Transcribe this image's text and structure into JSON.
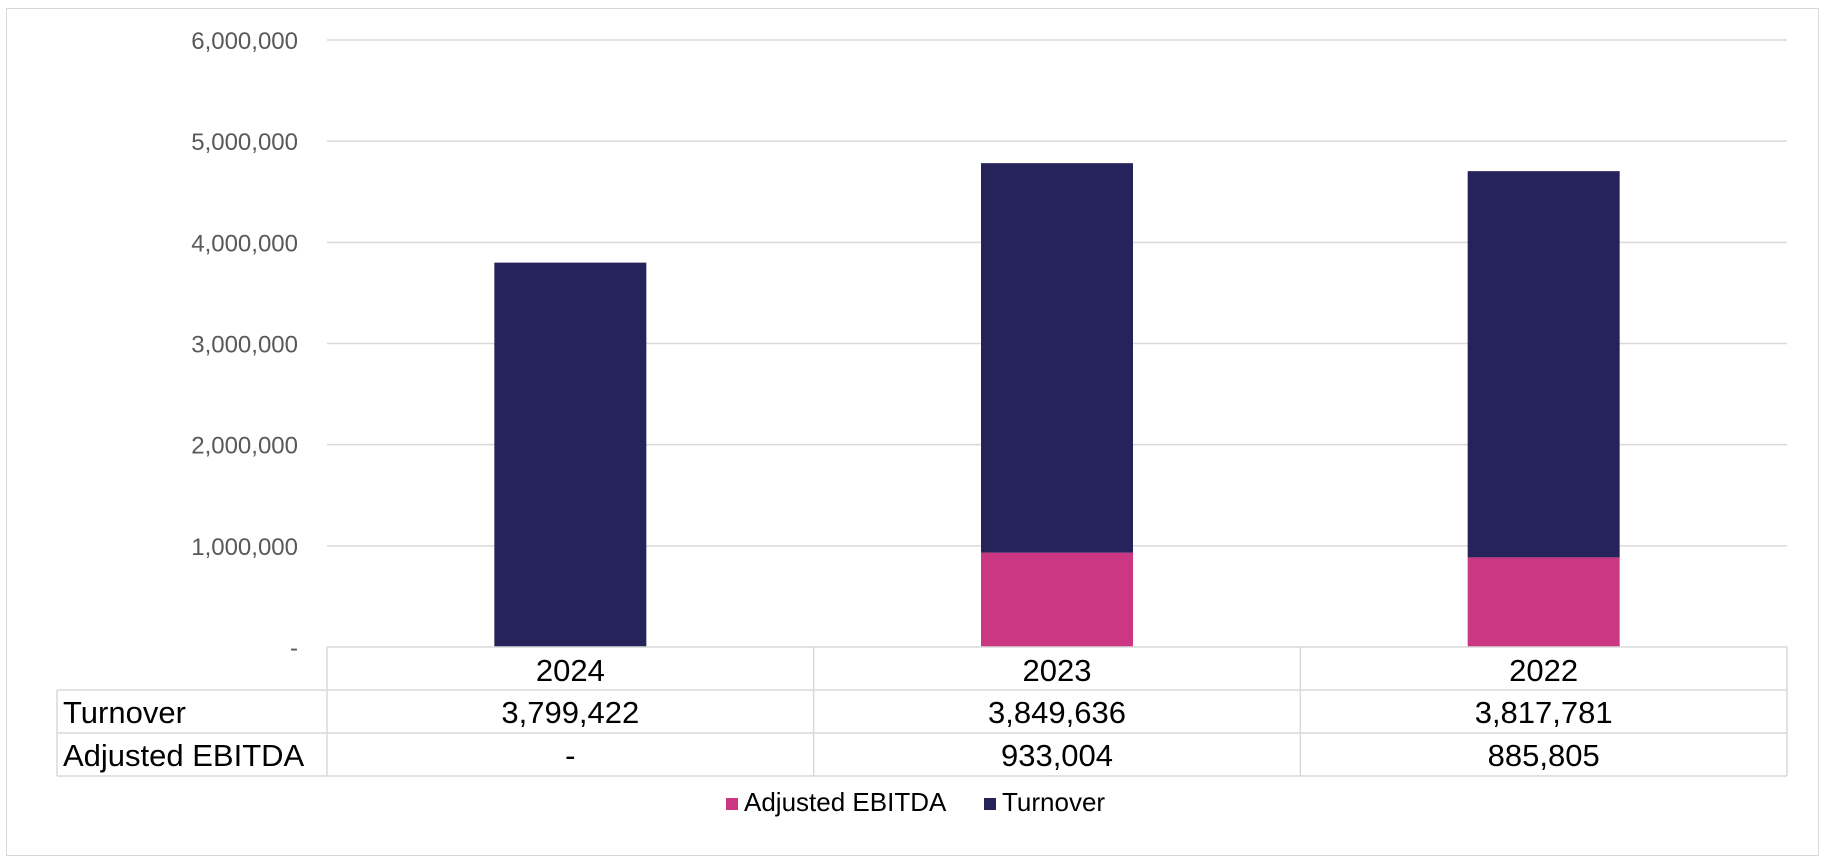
{
  "chart_data": {
    "type": "bar",
    "stacked": true,
    "categories": [
      "2024",
      "2023",
      "2022"
    ],
    "series": [
      {
        "name": "Adjusted EBITDA",
        "values": [
          0,
          933004,
          885805
        ],
        "display": [
          "-",
          "933,004",
          "885,805"
        ],
        "color": "#cc3783"
      },
      {
        "name": "Turnover",
        "values": [
          3799422,
          3849636,
          3817781
        ],
        "display": [
          "3,799,422",
          "3,849,636",
          "3,817,781"
        ],
        "color": "#26225a"
      }
    ],
    "stack_order": [
      "Adjusted EBITDA",
      "Turnover"
    ],
    "table_row_order": [
      "Turnover",
      "Adjusted EBITDA"
    ],
    "y_ticks": [
      {
        "value": 0,
        "label": "-"
      },
      {
        "value": 1000000,
        "label": "1,000,000"
      },
      {
        "value": 2000000,
        "label": "2,000,000"
      },
      {
        "value": 3000000,
        "label": "3,000,000"
      },
      {
        "value": 4000000,
        "label": "4,000,000"
      },
      {
        "value": 5000000,
        "label": "5,000,000"
      },
      {
        "value": 6000000,
        "label": "6,000,000"
      }
    ],
    "ylim": [
      0,
      6000000
    ],
    "grid": true,
    "legend_position": "bottom",
    "data_table": true,
    "title": "",
    "xlabel": "",
    "ylabel": "",
    "colors": {
      "gridline": "#d9d9d9",
      "tick_text": "#595959",
      "table_border": "#d9d9d9"
    }
  }
}
